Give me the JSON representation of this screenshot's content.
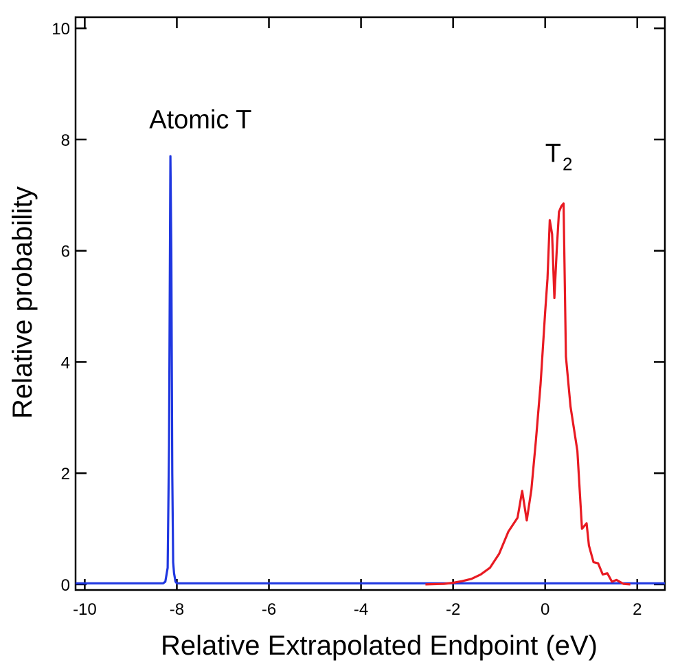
{
  "chart_data": {
    "type": "line",
    "title": "",
    "xlabel": "Relative Extrapolated Endpoint (eV)",
    "ylabel": "Relative probability",
    "xlim": [
      -10.2,
      2.6
    ],
    "ylim": [
      -0.1,
      10.2
    ],
    "grid": false,
    "x_ticks": [
      -10,
      -8,
      -6,
      -4,
      -2,
      0,
      2
    ],
    "x_tick_labels": [
      "-10",
      "-8",
      "-6",
      "-4",
      "-2",
      "0",
      "2"
    ],
    "y_ticks": [
      0,
      2,
      4,
      6,
      8,
      10
    ],
    "y_tick_labels": [
      "0",
      "2",
      "4",
      "6",
      "8",
      "10"
    ],
    "annotations": [
      {
        "text": "Atomic T",
        "x": -8.6,
        "y": 8.2
      },
      {
        "text": "T",
        "subscript": "2",
        "x": 0.0,
        "y": 7.6
      }
    ],
    "series": [
      {
        "color": "#1f37e0",
        "x": [
          -10.2,
          -8.3,
          -8.25,
          -8.2,
          -8.17,
          -8.14,
          -8.12,
          -8.1,
          -8.08,
          -8.06,
          -8.03,
          -8.0,
          -7.95,
          2.6
        ],
        "y": [
          0.02,
          0.02,
          0.05,
          0.3,
          2.5,
          7.7,
          6.0,
          2.0,
          0.4,
          0.2,
          0.05,
          0.02,
          0.02,
          0.02
        ]
      },
      {
        "color": "#e81a22",
        "x": [
          -2.6,
          -2.2,
          -2.0,
          -1.8,
          -1.6,
          -1.4,
          -1.2,
          -1.0,
          -0.8,
          -0.6,
          -0.5,
          -0.4,
          -0.3,
          -0.2,
          -0.1,
          0.0,
          0.05,
          0.1,
          0.15,
          0.2,
          0.25,
          0.3,
          0.35,
          0.4,
          0.45,
          0.55,
          0.7,
          0.8,
          0.9,
          0.95,
          1.05,
          1.15,
          1.25,
          1.35,
          1.45,
          1.55,
          1.7,
          1.85
        ],
        "y": [
          0.0,
          0.01,
          0.03,
          0.06,
          0.1,
          0.18,
          0.3,
          0.55,
          0.95,
          1.2,
          1.68,
          1.15,
          1.7,
          2.6,
          3.6,
          4.9,
          5.5,
          6.55,
          6.3,
          5.15,
          6.0,
          6.7,
          6.8,
          6.85,
          4.1,
          3.2,
          2.4,
          1.0,
          1.1,
          0.7,
          0.4,
          0.38,
          0.18,
          0.2,
          0.05,
          0.08,
          0.01,
          0.0
        ]
      }
    ]
  }
}
